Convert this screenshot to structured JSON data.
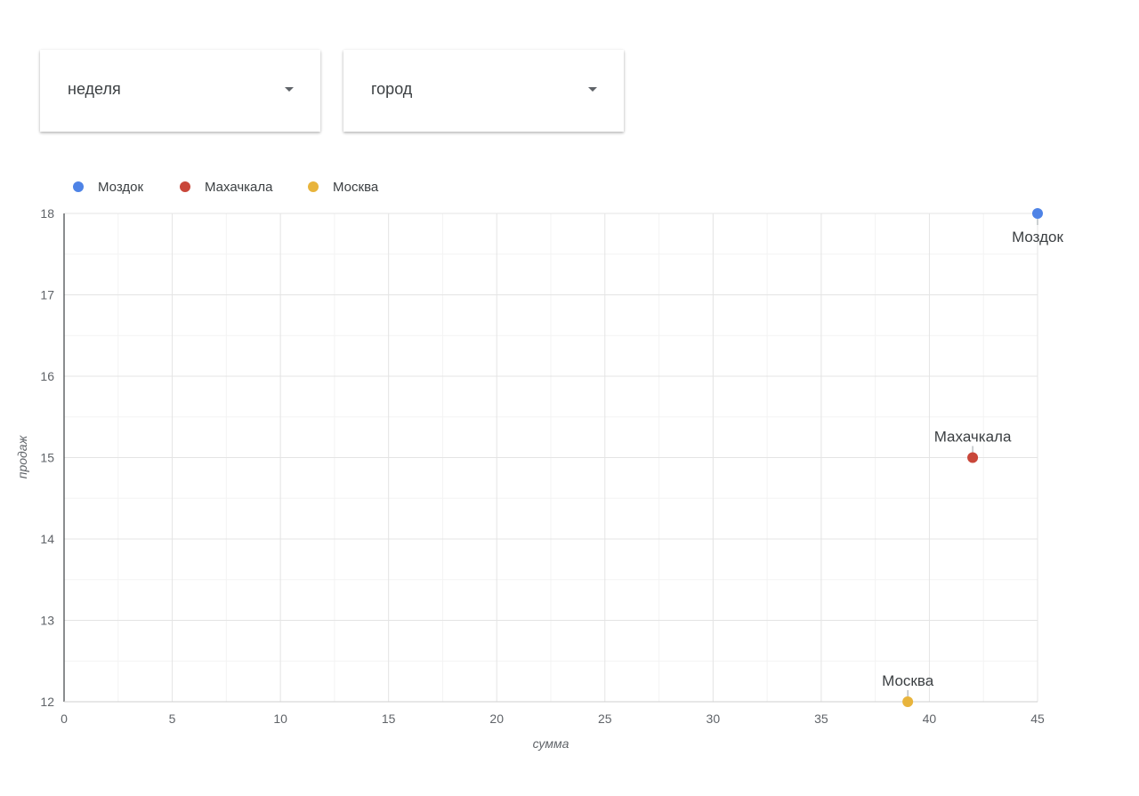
{
  "filters": [
    {
      "label": "неделя"
    },
    {
      "label": "город"
    }
  ],
  "chart_data": {
    "type": "scatter",
    "title": "",
    "xlabel": "сумма",
    "ylabel": "продаж",
    "xlim": [
      0,
      45
    ],
    "ylim": [
      12,
      18
    ],
    "x_ticks": [
      0,
      5,
      10,
      15,
      20,
      25,
      30,
      35,
      40,
      45
    ],
    "y_ticks": [
      12,
      13,
      14,
      15,
      16,
      17,
      18
    ],
    "grid": true,
    "legend_position": "top-left",
    "series": [
      {
        "name": "Моздок",
        "color": "#4e83e6",
        "points": [
          {
            "x": 45,
            "y": 18,
            "label": "Моздок"
          }
        ]
      },
      {
        "name": "Махачкала",
        "color": "#c9473a",
        "points": [
          {
            "x": 42,
            "y": 15,
            "label": "Махачкала"
          }
        ]
      },
      {
        "name": "Москва",
        "color": "#e8b43c",
        "points": [
          {
            "x": 39,
            "y": 12,
            "label": "Москва"
          }
        ]
      }
    ]
  }
}
